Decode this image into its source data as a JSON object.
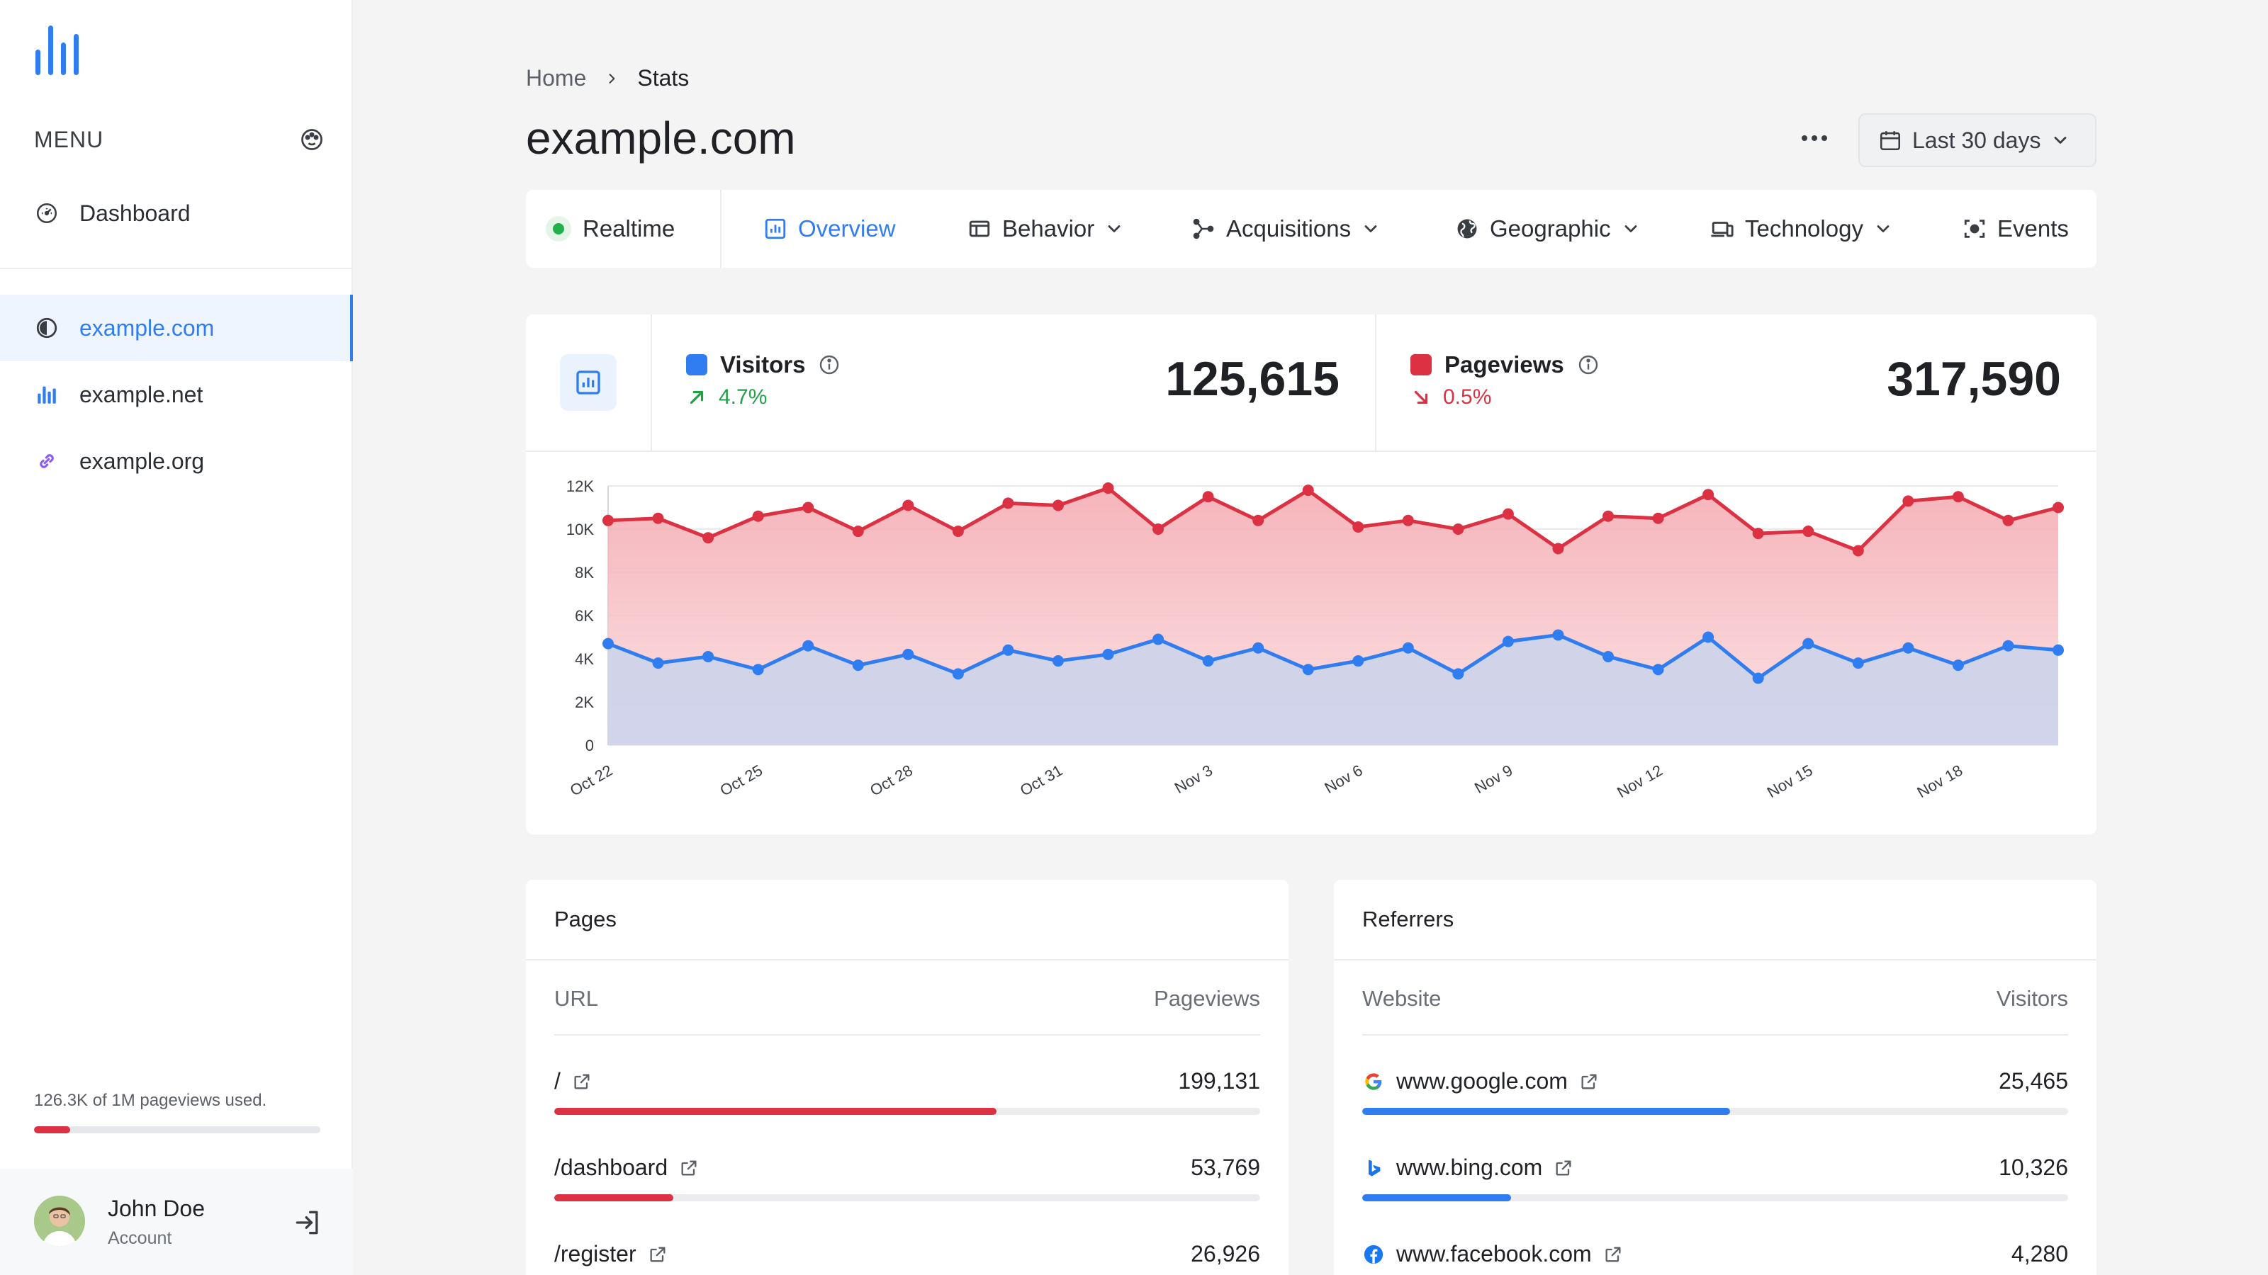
{
  "sidebar": {
    "menu_label": "MENU",
    "dashboard_label": "Dashboard",
    "sites": [
      {
        "label": "example.com",
        "active": true
      },
      {
        "label": "example.net",
        "active": false
      },
      {
        "label": "example.org",
        "active": false
      }
    ],
    "usage_text": "126.3K of 1M pageviews used.",
    "usage_fraction": 0.126,
    "account": {
      "name": "John Doe",
      "sub": "Account"
    }
  },
  "breadcrumb": {
    "home": "Home",
    "current": "Stats"
  },
  "page_title": "example.com",
  "date_range": "Last 30 days",
  "tabs": [
    {
      "label": "Realtime"
    },
    {
      "label": "Overview"
    },
    {
      "label": "Behavior"
    },
    {
      "label": "Acquisitions"
    },
    {
      "label": "Geographic"
    },
    {
      "label": "Technology"
    },
    {
      "label": "Events"
    }
  ],
  "stats": {
    "visitors": {
      "label": "Visitors",
      "change": "4.7%",
      "value": "125,615"
    },
    "pageviews": {
      "label": "Pageviews",
      "change": "0.5%",
      "value": "317,590"
    }
  },
  "colors": {
    "visitors": "#2f7df0",
    "pageviews": "#dc3142",
    "up": "#22a047",
    "accent": "#2f7df0"
  },
  "chart_data": {
    "type": "area",
    "x": [
      "Oct 22",
      "Oct 23",
      "Oct 24",
      "Oct 25",
      "Oct 26",
      "Oct 27",
      "Oct 28",
      "Oct 29",
      "Oct 30",
      "Oct 31",
      "Nov 1",
      "Nov 2",
      "Nov 3",
      "Nov 4",
      "Nov 5",
      "Nov 6",
      "Nov 7",
      "Nov 8",
      "Nov 9",
      "Nov 10",
      "Nov 11",
      "Nov 12",
      "Nov 13",
      "Nov 14",
      "Nov 15",
      "Nov 16",
      "Nov 17",
      "Nov 18",
      "Nov 19",
      "Nov 20"
    ],
    "x_tick_labels": [
      "Oct 22",
      "Oct 25",
      "Oct 28",
      "Oct 31",
      "Nov 3",
      "Nov 6",
      "Nov 9",
      "Nov 12",
      "Nov 15",
      "Nov 18"
    ],
    "y_tick_labels": [
      "0",
      "2K",
      "4K",
      "6K",
      "8K",
      "10K",
      "12K"
    ],
    "ylim": [
      0,
      12000
    ],
    "series": [
      {
        "name": "Pageviews",
        "values": [
          10400,
          10500,
          9600,
          10600,
          11000,
          9900,
          11100,
          9900,
          11200,
          11100,
          11900,
          10000,
          11500,
          10400,
          11800,
          10100,
          10400,
          10000,
          10700,
          9100,
          10600,
          10500,
          11600,
          9800,
          9900,
          9000,
          11300,
          11500,
          10400,
          11000
        ]
      },
      {
        "name": "Visitors",
        "values": [
          4700,
          3800,
          4100,
          3500,
          4600,
          3700,
          4200,
          3300,
          4400,
          3900,
          4200,
          4900,
          3900,
          4500,
          3500,
          3900,
          4500,
          3300,
          4800,
          5100,
          4100,
          3500,
          5000,
          3100,
          4700,
          3800,
          4500,
          3700,
          4600,
          4400
        ]
      }
    ],
    "grid": true
  },
  "pages": {
    "title": "Pages",
    "col_left": "URL",
    "col_right": "Pageviews",
    "rows": [
      {
        "label": "/",
        "value": "199,131",
        "fraction": 0.627
      },
      {
        "label": "/dashboard",
        "value": "53,769",
        "fraction": 0.169
      },
      {
        "label": "/register",
        "value": "26,926",
        "fraction": 0.085
      }
    ]
  },
  "referrers": {
    "title": "Referrers",
    "col_left": "Website",
    "col_right": "Visitors",
    "rows": [
      {
        "label": "www.google.com",
        "icon": "google-icon",
        "value": "25,465",
        "fraction": 0.521
      },
      {
        "label": "www.bing.com",
        "icon": "bing-icon",
        "value": "10,326",
        "fraction": 0.211
      },
      {
        "label": "www.facebook.com",
        "icon": "facebook-icon",
        "value": "4,280",
        "fraction": 0.088
      }
    ]
  }
}
